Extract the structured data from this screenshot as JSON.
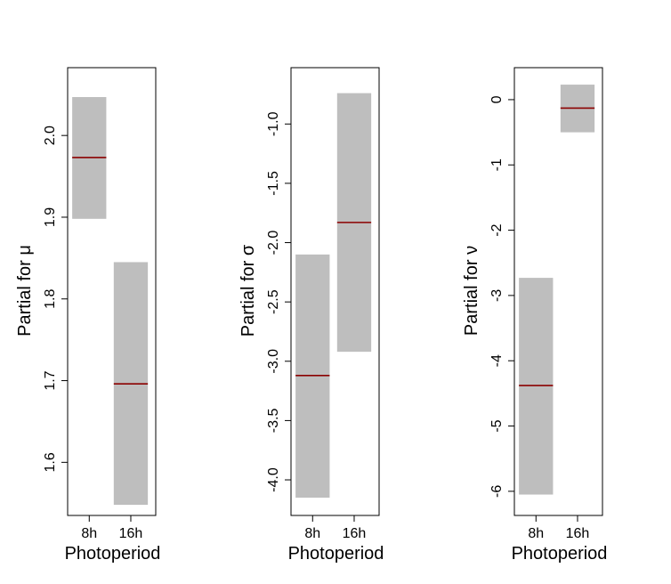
{
  "chart_data": [
    {
      "type": "bar",
      "xlabel": "Photoperiod",
      "ylabel": "Partial for μ",
      "categories": [
        "8h",
        "16h"
      ],
      "ylim": [
        1.535,
        2.083
      ],
      "yticks": [
        "1.6",
        "1.7",
        "1.8",
        "1.9",
        "2.0"
      ],
      "ytick_values": [
        1.6,
        1.7,
        1.8,
        1.9,
        2.0
      ],
      "bands": [
        {
          "category": "8h",
          "lower": 1.898,
          "upper": 2.047,
          "estimate": 1.973
        },
        {
          "category": "16h",
          "lower": 1.548,
          "upper": 1.845,
          "estimate": 1.696
        }
      ]
    },
    {
      "type": "bar",
      "xlabel": "Photoperiod",
      "ylabel": "Partial for σ",
      "categories": [
        "8h",
        "16h"
      ],
      "ylim": [
        -4.3,
        -0.525
      ],
      "yticks": [
        "-4.0",
        "-3.5",
        "-3.0",
        "-2.5",
        "-2.0",
        "-1.5",
        "-1.0"
      ],
      "ytick_values": [
        -4.0,
        -3.5,
        -3.0,
        -2.5,
        -2.0,
        -1.5,
        -1.0
      ],
      "bands": [
        {
          "category": "8h",
          "lower": -4.15,
          "upper": -2.1,
          "estimate": -3.12
        },
        {
          "category": "16h",
          "lower": -2.92,
          "upper": -0.74,
          "estimate": -1.83
        }
      ]
    },
    {
      "type": "bar",
      "xlabel": "Photoperiod",
      "ylabel": "Partial for ν",
      "categories": [
        "8h",
        "16h"
      ],
      "ylim": [
        -6.37,
        0.49
      ],
      "yticks": [
        "-6",
        "-5",
        "-4",
        "-3",
        "-2",
        "-1",
        "0"
      ],
      "ytick_values": [
        -6,
        -5,
        -4,
        -3,
        -2,
        -1,
        0
      ],
      "bands": [
        {
          "category": "8h",
          "lower": -6.05,
          "upper": -2.73,
          "estimate": -4.38
        },
        {
          "category": "16h",
          "lower": -0.5,
          "upper": 0.23,
          "estimate": -0.13
        }
      ]
    }
  ],
  "colors": {
    "band": "#bebebe",
    "estimate": "#8b0000",
    "axis": "#000000"
  }
}
